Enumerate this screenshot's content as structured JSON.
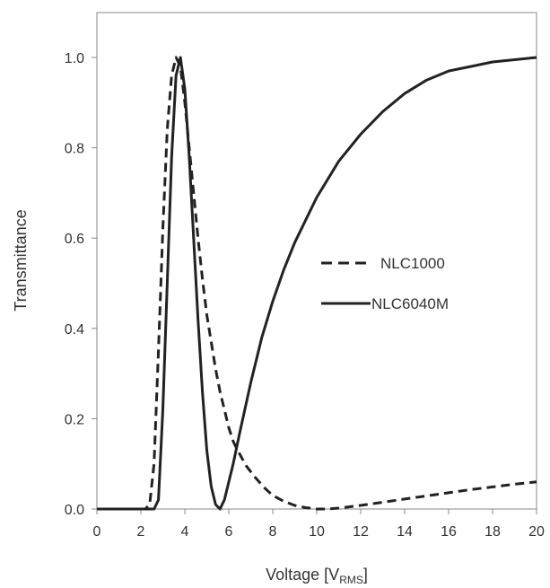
{
  "chart_data": {
    "type": "line",
    "title": "",
    "xlabel": "Voltage [V",
    "xlabel_sub": "RMS",
    "xlabel_suffix": "]",
    "ylabel": "Transmittance",
    "xlim": [
      0,
      20
    ],
    "ylim": [
      0,
      1.1
    ],
    "xticks": [
      "0",
      "2",
      "4",
      "6",
      "8",
      "10",
      "12",
      "14",
      "16",
      "18",
      "20"
    ],
    "yticks": [
      "0.0",
      "0.2",
      "0.4",
      "0.6",
      "0.8",
      "1.0"
    ],
    "grid": false,
    "legend_position": "right-center",
    "series": [
      {
        "name": "NLC1000",
        "style": "dashed",
        "color": "#222222",
        "x": [
          0,
          2.2,
          2.4,
          2.6,
          2.8,
          3.0,
          3.2,
          3.4,
          3.6,
          3.8,
          4.0,
          4.2,
          4.4,
          4.6,
          4.8,
          5.0,
          5.2,
          5.4,
          5.6,
          5.8,
          6.0,
          6.2,
          6.4,
          6.8,
          7.2,
          7.6,
          8.0,
          8.5,
          9.0,
          9.5,
          10.0,
          10.5,
          11.0,
          11.5,
          12.0,
          13.0,
          14.0,
          15.0,
          16.0,
          17.0,
          18.0,
          19.0,
          20.0
        ],
        "y": [
          0.0,
          0.0,
          0.01,
          0.1,
          0.35,
          0.62,
          0.84,
          0.96,
          1.0,
          0.98,
          0.9,
          0.8,
          0.7,
          0.6,
          0.51,
          0.43,
          0.37,
          0.31,
          0.26,
          0.22,
          0.18,
          0.15,
          0.13,
          0.095,
          0.07,
          0.048,
          0.03,
          0.017,
          0.008,
          0.003,
          0.0,
          0.0,
          0.002,
          0.005,
          0.008,
          0.015,
          0.022,
          0.029,
          0.036,
          0.043,
          0.049,
          0.055,
          0.06
        ]
      },
      {
        "name": "NLC6040M",
        "style": "solid",
        "color": "#222222",
        "x": [
          0,
          2.6,
          2.8,
          3.0,
          3.2,
          3.4,
          3.6,
          3.8,
          4.0,
          4.2,
          4.4,
          4.6,
          4.8,
          5.0,
          5.2,
          5.4,
          5.6,
          5.8,
          6.0,
          6.2,
          6.5,
          7.0,
          7.5,
          8.0,
          8.5,
          9.0,
          10.0,
          11.0,
          12.0,
          13.0,
          14.0,
          15.0,
          16.0,
          17.0,
          18.0,
          19.0,
          20.0
        ],
        "y": [
          0.0,
          0.0,
          0.02,
          0.22,
          0.5,
          0.78,
          0.96,
          1.0,
          0.93,
          0.78,
          0.6,
          0.42,
          0.26,
          0.13,
          0.05,
          0.01,
          0.0,
          0.02,
          0.06,
          0.1,
          0.17,
          0.28,
          0.38,
          0.46,
          0.53,
          0.59,
          0.69,
          0.77,
          0.83,
          0.88,
          0.92,
          0.95,
          0.97,
          0.98,
          0.99,
          0.995,
          1.0
        ]
      }
    ]
  }
}
